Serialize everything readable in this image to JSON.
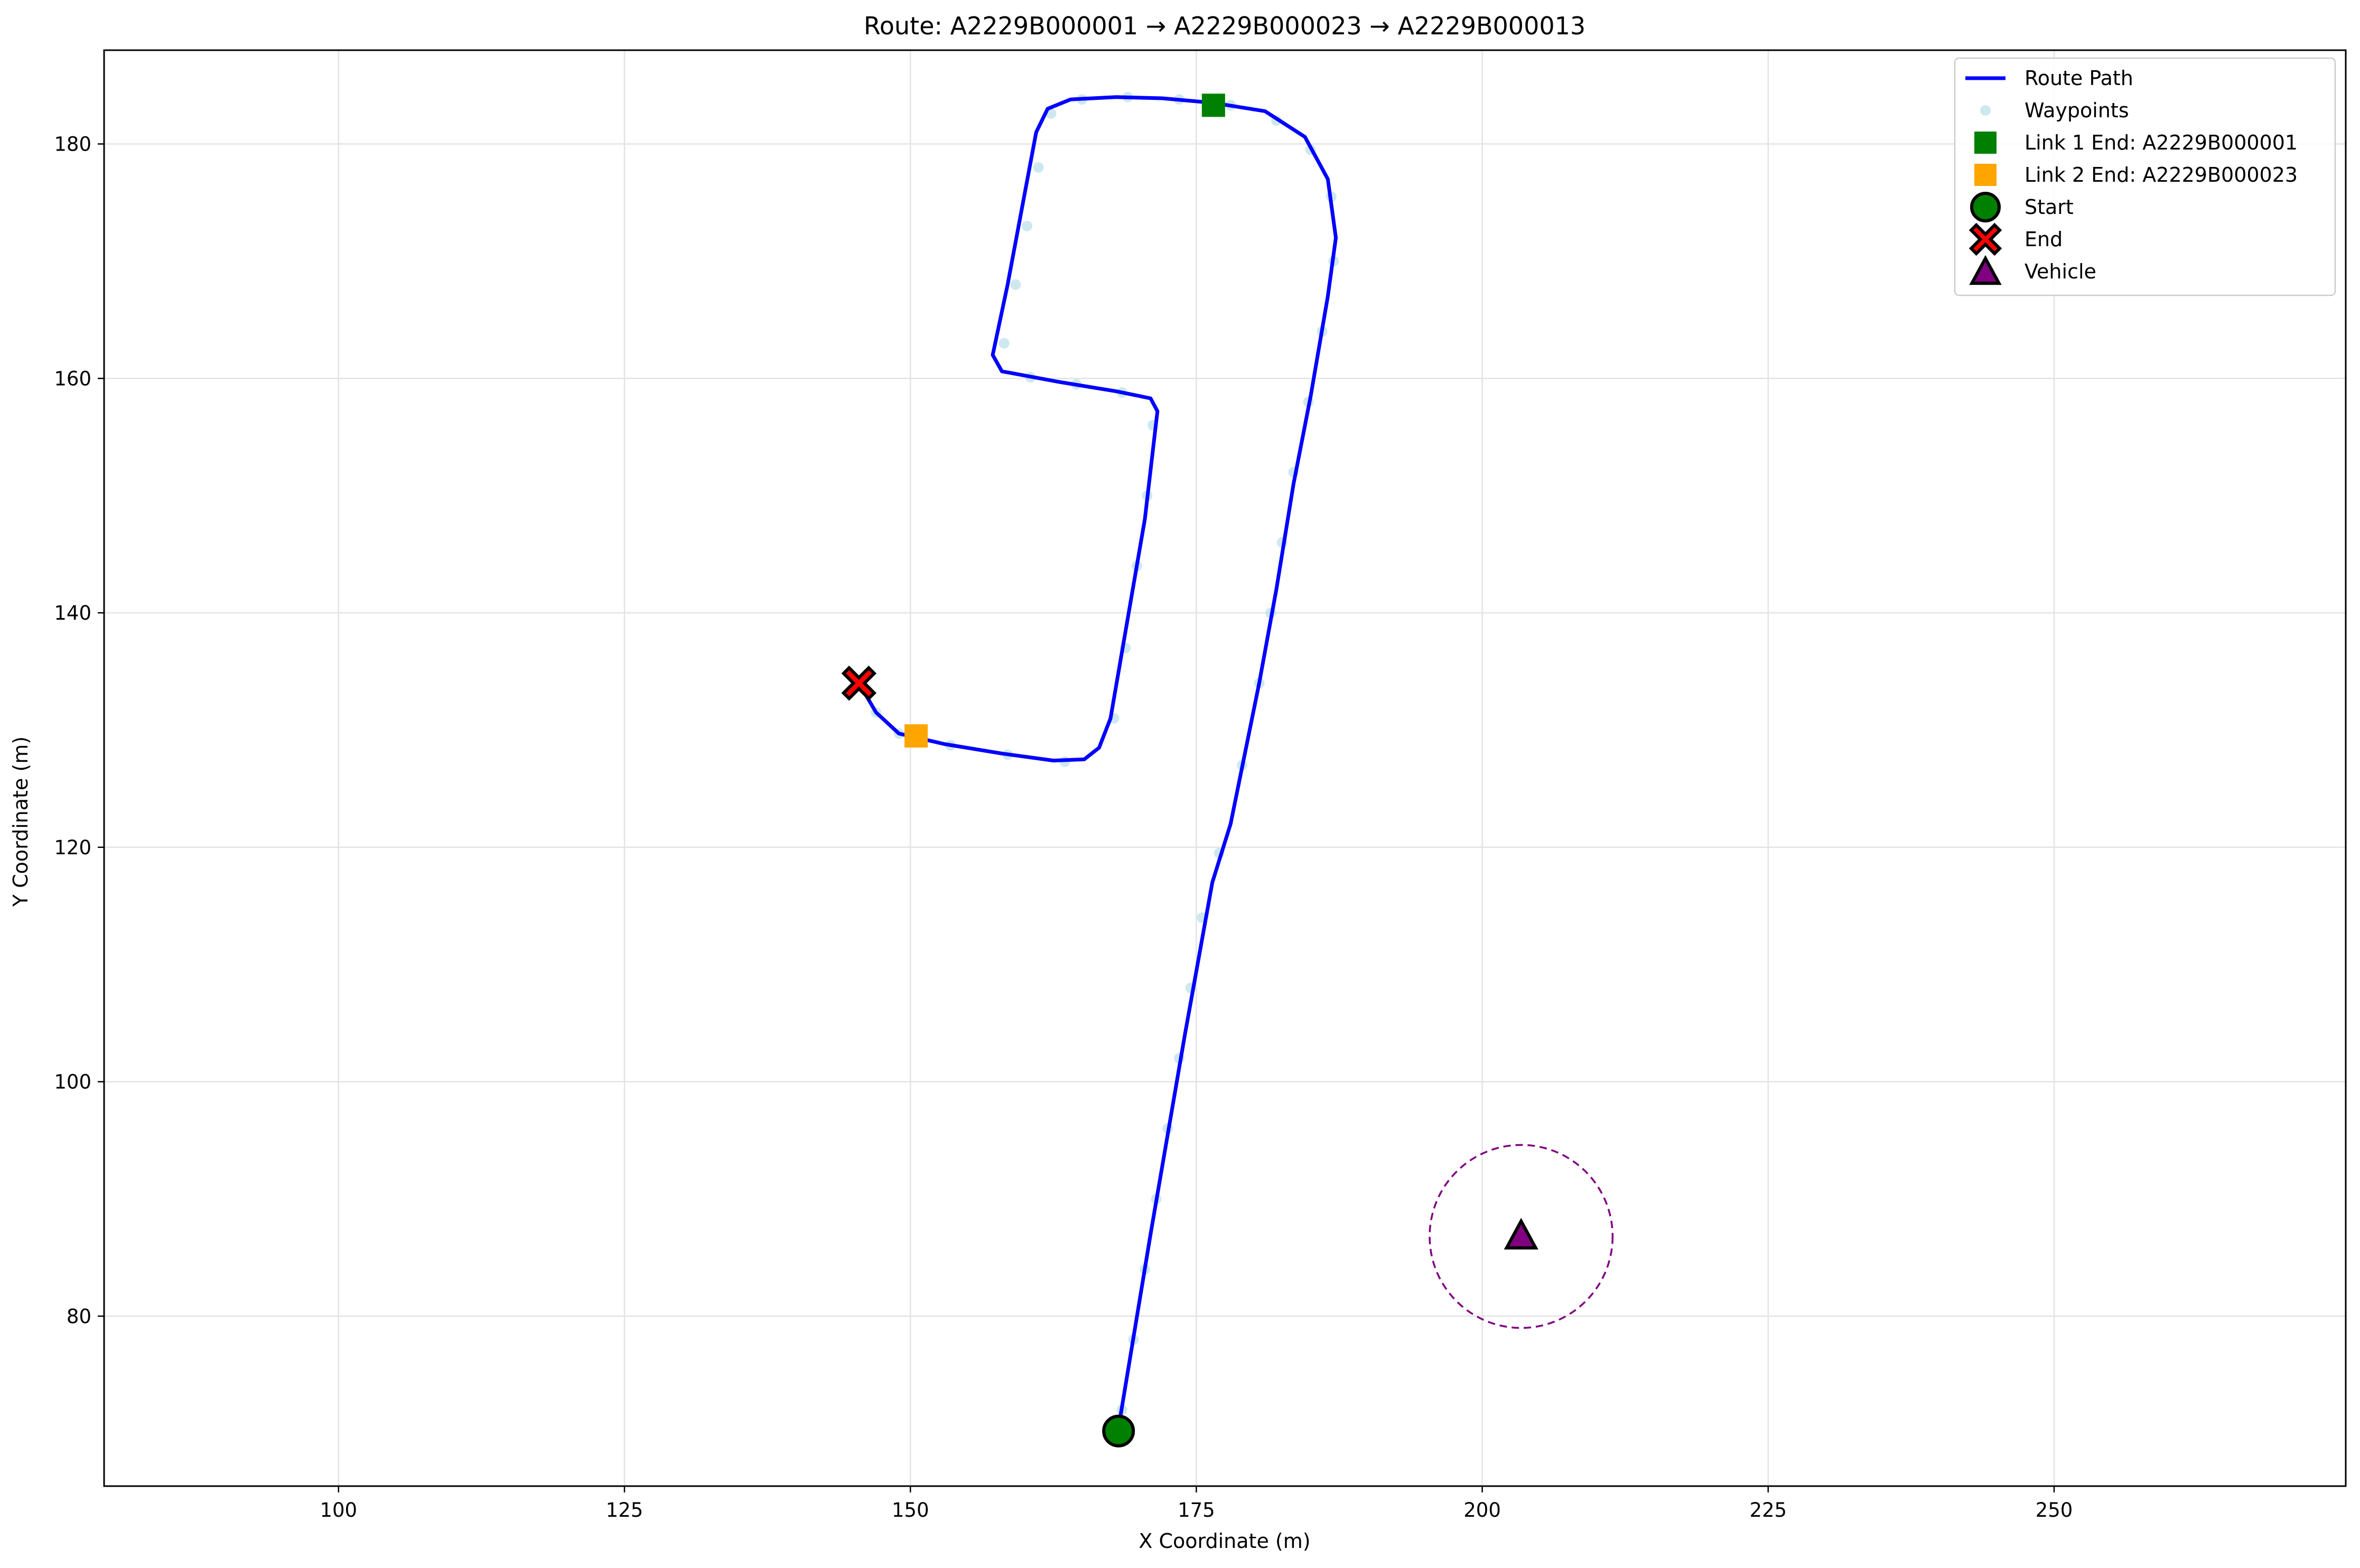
{
  "chart_data": {
    "type": "line",
    "title": "Route: A2229B000001 → A2229B000023 → A2229B000013",
    "xlabel": "X Coordinate (m)",
    "ylabel": "Y Coordinate (m)",
    "xlim": [
      79.5,
      275.5
    ],
    "ylim": [
      65.5,
      188
    ],
    "xticks": [
      100,
      125,
      150,
      175,
      200,
      225,
      250
    ],
    "yticks": [
      80,
      100,
      120,
      140,
      160,
      180
    ],
    "grid": true,
    "legend_position": "top-right",
    "colors": {
      "route": "#0000ff",
      "waypoints": "#add8e6",
      "link1": "#008000",
      "link2": "#ffa500",
      "start": "#008000",
      "end": "#ff0000",
      "vehicle": "#800080",
      "radius": "#800080"
    },
    "route_path": {
      "name": "Route Path",
      "points": [
        [
          168.2,
          70.5
        ],
        [
          171.0,
          87.0
        ],
        [
          174.0,
          104.0
        ],
        [
          176.4,
          117.0
        ],
        [
          178.0,
          122.0
        ],
        [
          180.5,
          134.0
        ],
        [
          182.0,
          142.0
        ],
        [
          183.5,
          151.0
        ],
        [
          185.0,
          158.5
        ],
        [
          186.5,
          167.0
        ],
        [
          187.2,
          172.0
        ],
        [
          186.5,
          177.0
        ],
        [
          184.5,
          180.6
        ],
        [
          181.0,
          182.8
        ],
        [
          176.5,
          183.5
        ],
        [
          172.0,
          183.9
        ],
        [
          168.0,
          184.0
        ],
        [
          164.0,
          183.8
        ],
        [
          162.0,
          183.0
        ],
        [
          161.0,
          181.0
        ],
        [
          158.5,
          168.0
        ],
        [
          157.2,
          162.0
        ],
        [
          158.0,
          160.6
        ],
        [
          163.0,
          159.7
        ],
        [
          168.0,
          158.9
        ],
        [
          171.0,
          158.3
        ],
        [
          171.6,
          157.2
        ],
        [
          170.5,
          148.0
        ],
        [
          169.0,
          139.5
        ],
        [
          167.5,
          131.0
        ],
        [
          166.5,
          128.5
        ],
        [
          165.2,
          127.5
        ],
        [
          162.5,
          127.4
        ],
        [
          158.0,
          128.0
        ],
        [
          153.0,
          128.8
        ],
        [
          149.0,
          129.7
        ],
        [
          147.0,
          131.5
        ],
        [
          145.5,
          134.0
        ]
      ]
    },
    "waypoints": {
      "name": "Waypoints",
      "points": [
        [
          168.5,
          72
        ],
        [
          169.5,
          78
        ],
        [
          170.5,
          84
        ],
        [
          171.5,
          90
        ],
        [
          172.5,
          96
        ],
        [
          173.5,
          102
        ],
        [
          174.5,
          108
        ],
        [
          175.5,
          114
        ],
        [
          177.0,
          119.5
        ],
        [
          179.0,
          127
        ],
        [
          180.5,
          134
        ],
        [
          181.5,
          140
        ],
        [
          182.5,
          146
        ],
        [
          183.5,
          152
        ],
        [
          184.8,
          158
        ],
        [
          186.0,
          164
        ],
        [
          187.0,
          170
        ],
        [
          186.8,
          175.5
        ],
        [
          185.0,
          179.5
        ],
        [
          182.0,
          182.0
        ],
        [
          178.0,
          183.3
        ],
        [
          173.5,
          183.8
        ],
        [
          169.0,
          184.0
        ],
        [
          165.0,
          183.8
        ],
        [
          162.3,
          182.6
        ],
        [
          161.2,
          178
        ],
        [
          160.2,
          173
        ],
        [
          159.2,
          168
        ],
        [
          158.2,
          163
        ],
        [
          160.5,
          160.1
        ],
        [
          164.5,
          159.5
        ],
        [
          168.5,
          158.8
        ],
        [
          171.2,
          156
        ],
        [
          170.7,
          150
        ],
        [
          169.8,
          144
        ],
        [
          168.8,
          137
        ],
        [
          167.8,
          131
        ],
        [
          163.5,
          127.3
        ],
        [
          158.5,
          127.9
        ],
        [
          153.5,
          128.7
        ],
        [
          149.0,
          129.7
        ],
        [
          147.0,
          131.5
        ]
      ]
    },
    "markers": {
      "link1_end": {
        "name": "Link 1 End: A2229B000001",
        "x": 176.5,
        "y": 183.3
      },
      "link2_end": {
        "name": "Link 2 End: A2229B000023",
        "x": 150.5,
        "y": 129.5
      },
      "start": {
        "name": "Start",
        "x": 168.2,
        "y": 70.2
      },
      "end": {
        "name": "End",
        "x": 145.5,
        "y": 134.0
      },
      "vehicle": {
        "name": "Vehicle",
        "x": 203.4,
        "y": 86.8,
        "radius": 8.0
      }
    },
    "legend": [
      "Route Path",
      "Waypoints",
      "Link 1 End: A2229B000001",
      "Link 2 End: A2229B000023",
      "Start",
      "End",
      "Vehicle"
    ]
  }
}
